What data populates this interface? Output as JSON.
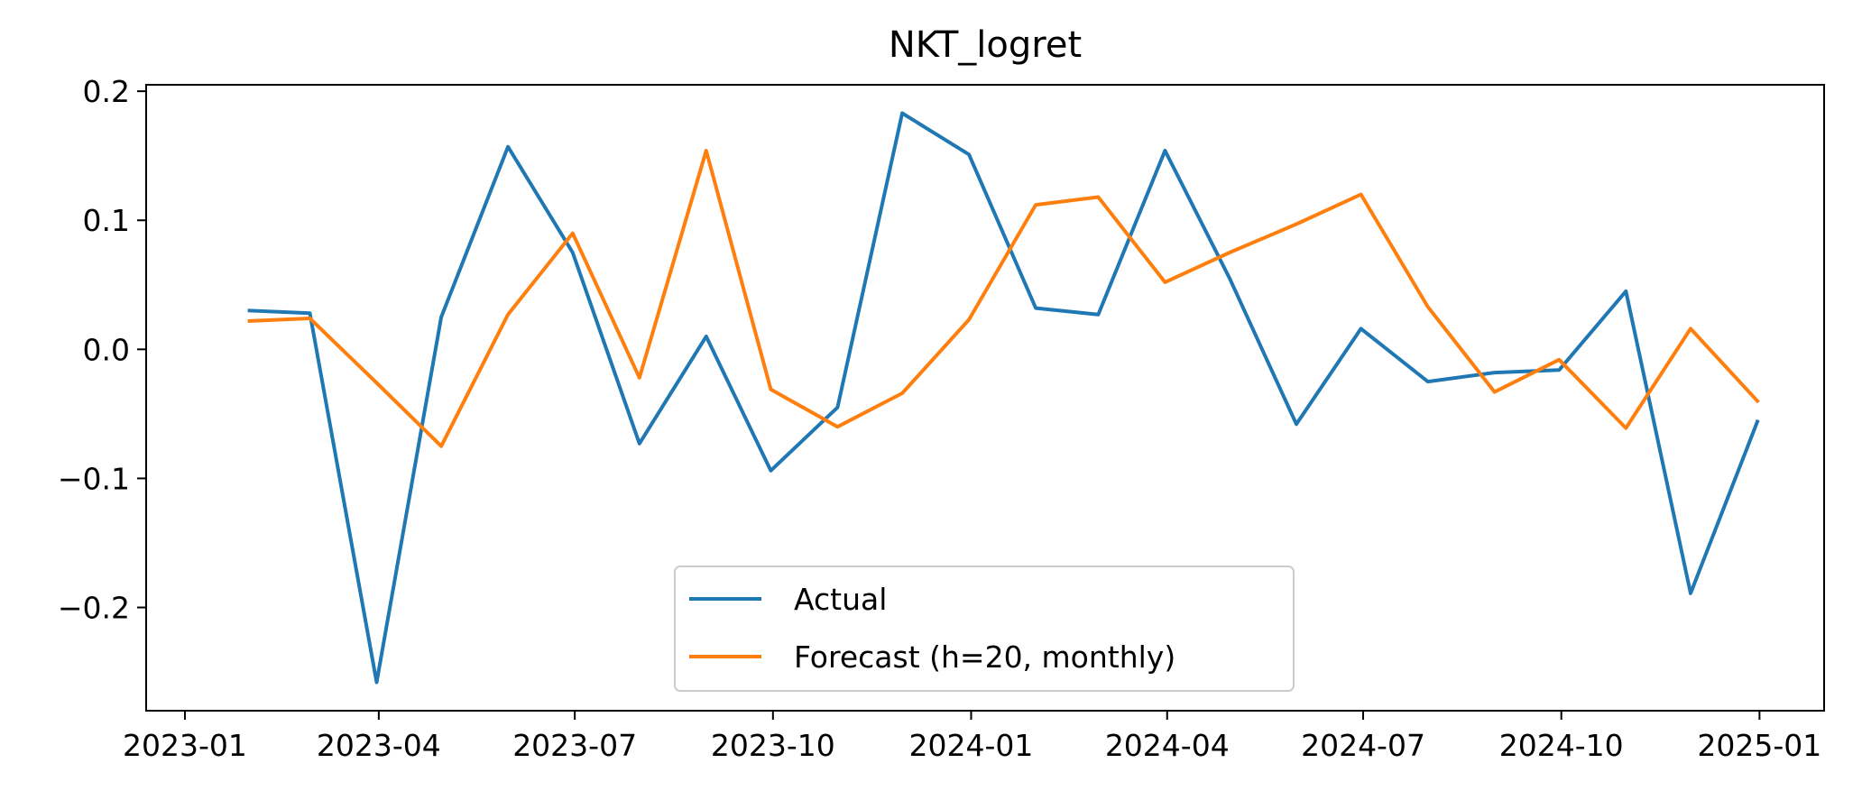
{
  "chart_data": {
    "type": "line",
    "title": "NKT_logret",
    "xlabel": "",
    "ylabel": "",
    "x_ticks": [
      "2023-01-01",
      "2023-04-01",
      "2023-07-01",
      "2023-10-01",
      "2024-01-01",
      "2024-04-01",
      "2024-07-01",
      "2024-10-01",
      "2025-01-01"
    ],
    "x_tick_labels": [
      "2023-01",
      "2023-04",
      "2023-07",
      "2023-10",
      "2024-01",
      "2024-04",
      "2024-07",
      "2024-10",
      "2025-01"
    ],
    "y_ticks": [
      -0.2,
      -0.1,
      0.0,
      0.1,
      0.2
    ],
    "y_tick_labels": [
      "−0.2",
      "−0.1",
      "0.0",
      "0.1",
      "0.2"
    ],
    "xlim": [
      "2022-12-14",
      "2025-01-31"
    ],
    "ylim": [
      -0.28,
      0.205
    ],
    "grid": false,
    "legend_position": "lower-center",
    "x": [
      "2023-01-31",
      "2023-02-28",
      "2023-03-31",
      "2023-04-30",
      "2023-05-31",
      "2023-06-30",
      "2023-07-31",
      "2023-08-31",
      "2023-09-30",
      "2023-10-31",
      "2023-11-30",
      "2023-12-31",
      "2024-01-31",
      "2024-02-29",
      "2024-03-31",
      "2024-04-30",
      "2024-05-31",
      "2024-06-30",
      "2024-07-31",
      "2024-08-31",
      "2024-09-30",
      "2024-10-31",
      "2024-11-30",
      "2024-12-31"
    ],
    "series": [
      {
        "name": "Actual",
        "color": "#1f77b4",
        "x": [
          "2023-01-31",
          "2023-02-28",
          "2023-03-31",
          "2023-04-30",
          "2023-05-31",
          "2023-06-30",
          "2023-07-31",
          "2023-08-31",
          "2023-09-30",
          "2023-10-31",
          "2023-11-30",
          "2023-12-31",
          "2024-01-31",
          "2024-02-29",
          "2024-03-31",
          "2024-04-30",
          "2024-05-31",
          "2024-06-30",
          "2024-07-31",
          "2024-08-31",
          "2024-09-30",
          "2024-10-31",
          "2024-11-30",
          "2024-12-31"
        ],
        "values": [
          0.03,
          0.028,
          -0.258,
          0.025,
          0.157,
          0.075,
          -0.073,
          0.01,
          -0.094,
          -0.045,
          0.183,
          0.151,
          0.032,
          0.027,
          0.154,
          0.055,
          -0.058,
          0.016,
          -0.025,
          -0.018,
          -0.016,
          0.045,
          -0.189,
          -0.056
        ]
      },
      {
        "name": "Forecast (h=20, monthly)",
        "color": "#ff7f0e",
        "x": [
          "2023-01-31",
          "2023-02-28",
          "2023-03-31",
          "2023-04-30",
          "2023-05-31",
          "2023-06-30",
          "2023-07-31",
          "2023-08-31",
          "2023-09-30",
          "2023-10-31",
          "2023-11-30",
          "2023-12-31",
          "2024-01-31",
          "2024-02-29",
          "2024-03-31",
          "2024-04-30",
          "2024-05-31",
          "2024-06-30",
          "2024-07-31",
          "2024-08-31",
          "2024-09-30",
          "2024-10-31",
          "2024-11-30",
          "2024-12-31"
        ],
        "values": [
          0.022,
          0.024,
          -0.026,
          -0.075,
          0.027,
          0.09,
          -0.022,
          0.154,
          -0.031,
          -0.06,
          -0.034,
          0.023,
          0.112,
          0.118,
          0.052,
          0.075,
          0.097,
          0.12,
          0.033,
          -0.033,
          -0.008,
          -0.061,
          0.016,
          -0.04
        ]
      }
    ]
  }
}
